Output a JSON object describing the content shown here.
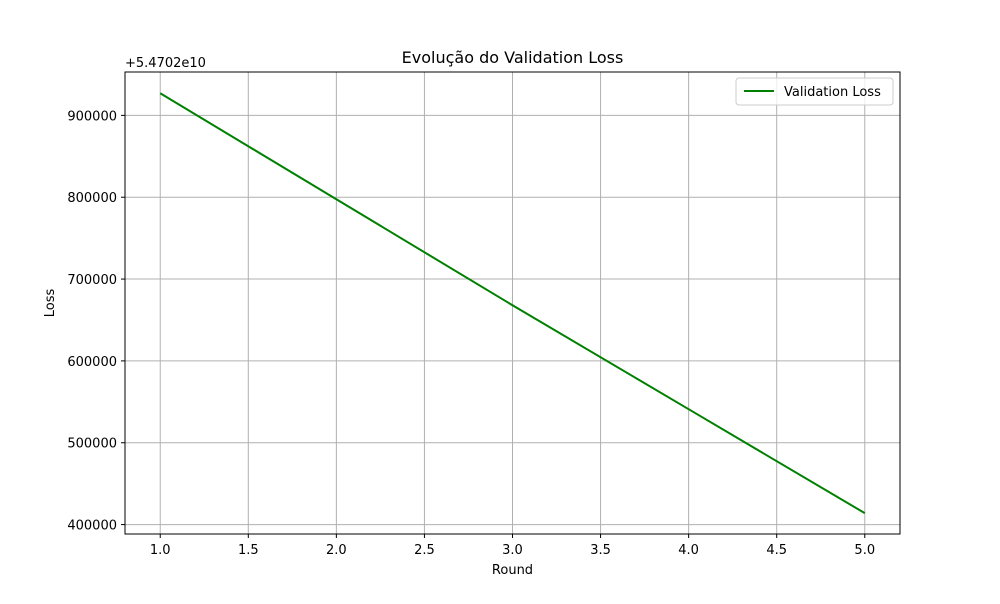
{
  "chart_data": {
    "type": "line",
    "title": "Evolução do Validation Loss",
    "xlabel": "Round",
    "ylabel": "Loss",
    "y_offset_label": "+5.4702e10",
    "x": [
      1,
      2,
      3,
      4,
      5
    ],
    "series": [
      {
        "name": "Validation Loss",
        "color": "#008000",
        "values": [
          54702927000,
          54702797500,
          54702668000,
          54702541000,
          54702414000
        ]
      }
    ],
    "xlim": [
      0.8,
      5.2
    ],
    "ylim": [
      54702388500,
      54702953000
    ],
    "x_ticks": [
      1.0,
      1.5,
      2.0,
      2.5,
      3.0,
      3.5,
      4.0,
      4.5,
      5.0
    ],
    "x_tick_labels": [
      "1.0",
      "1.5",
      "2.0",
      "2.5",
      "3.0",
      "3.5",
      "4.0",
      "4.5",
      "5.0"
    ],
    "y_ticks_offset": [
      400000,
      500000,
      600000,
      700000,
      800000,
      900000
    ],
    "y_tick_labels": [
      "400000",
      "500000",
      "600000",
      "700000",
      "800000",
      "900000"
    ],
    "grid": true,
    "legend_position": "upper-right"
  }
}
